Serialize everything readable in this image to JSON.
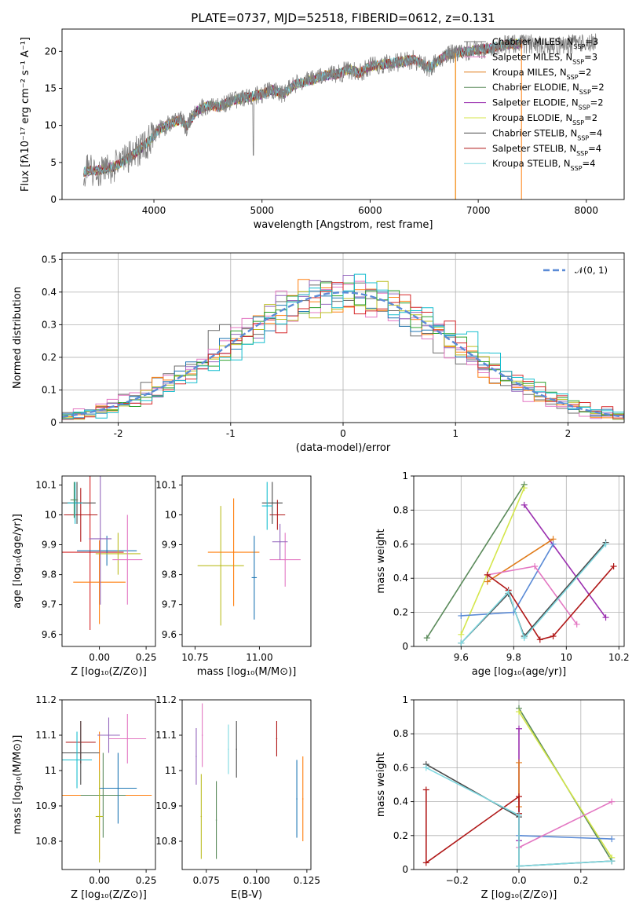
{
  "colors": [
    "#6c6c6c",
    "#e377c2",
    "#ff7f0e",
    "#1f77b4",
    "#9467bd",
    "#bcbd22",
    "#2ca02c",
    "#d62728",
    "#17becf"
  ],
  "models": [
    {
      "name": "Chabrier MILES",
      "nssp": "3",
      "color": "#7f7f7f"
    },
    {
      "name": "Salpeter MILES",
      "nssp": "3",
      "color": "#e377c2"
    },
    {
      "name": "Kroupa MILES",
      "nssp": "2",
      "color": "#e07b1a"
    },
    {
      "name": "Chabrier ELODIE",
      "nssp": "2",
      "color": "#5a8a5a"
    },
    {
      "name": "Salpeter ELODIE",
      "nssp": "2",
      "color": "#9b30b0"
    },
    {
      "name": "Kroupa ELODIE",
      "nssp": "2",
      "color": "#d4e64a"
    },
    {
      "name": "Chabrier STELIB",
      "nssp": "4",
      "color": "#4a4a4a"
    },
    {
      "name": "Salpeter STELIB",
      "nssp": "4",
      "color": "#b01818"
    },
    {
      "name": "Kroupa STELIB",
      "nssp": "4",
      "color": "#7fd8e0"
    }
  ],
  "chart_data": [
    {
      "id": "spectrum",
      "type": "line",
      "title": "PLATE=0737, MJD=52518, FIBERID=0612, z=0.131",
      "xlabel": "wavelength [Angstrom, rest frame]",
      "ylabel": "Flux [fλ10⁻¹⁷ erg cm⁻² s⁻¹ A⁻¹]",
      "xlim": [
        3150,
        8350
      ],
      "ylim": [
        0,
        23
      ],
      "xticks": [
        4000,
        5000,
        6000,
        7000,
        8000
      ],
      "yticks": [
        0,
        5,
        10,
        15,
        20
      ],
      "continuum": [
        [
          3350,
          3.8
        ],
        [
          3500,
          4.0
        ],
        [
          3650,
          4.5
        ],
        [
          3750,
          5.5
        ],
        [
          3850,
          6.5
        ],
        [
          3950,
          7.8
        ],
        [
          4050,
          9.5
        ],
        [
          4150,
          10.2
        ],
        [
          4250,
          10.8
        ],
        [
          4300,
          9.8
        ],
        [
          4400,
          12.0
        ],
        [
          4500,
          12.7
        ],
        [
          4600,
          12.5
        ],
        [
          4700,
          13.2
        ],
        [
          4800,
          13.6
        ],
        [
          4900,
          13.9
        ],
        [
          5000,
          14.2
        ],
        [
          5100,
          14.8
        ],
        [
          5200,
          14.2
        ],
        [
          5300,
          15.5
        ],
        [
          5400,
          15.9
        ],
        [
          5500,
          16.3
        ],
        [
          5600,
          16.8
        ],
        [
          5700,
          16.9
        ],
        [
          5800,
          17.6
        ],
        [
          5900,
          17.0
        ],
        [
          6000,
          18.0
        ],
        [
          6100,
          18.2
        ],
        [
          6200,
          18.4
        ],
        [
          6300,
          18.6
        ],
        [
          6400,
          18.9
        ],
        [
          6550,
          17.8
        ],
        [
          6700,
          19.5
        ],
        [
          6900,
          20.0
        ],
        [
          7100,
          20.4
        ],
        [
          7300,
          21.0
        ],
        [
          7500,
          21.0
        ],
        [
          7700,
          20.6
        ],
        [
          7900,
          21.0
        ],
        [
          8100,
          21.2
        ]
      ],
      "data_xmax": 8100,
      "model_xmax": 7410,
      "cutoffs": [
        {
          "x": 6790,
          "color": "#bcbd22"
        },
        {
          "x": 7400,
          "color": "#ff7f0e"
        },
        {
          "x": 6790,
          "color": "#ff7f0e"
        }
      ]
    },
    {
      "id": "residuals",
      "type": "histogram",
      "xlabel": "(data-model)/error",
      "ylabel": "Normed distribution",
      "xlim": [
        -2.5,
        2.5
      ],
      "ylim": [
        0,
        0.52
      ],
      "xticks": [
        -2,
        -1,
        0,
        1,
        2
      ],
      "yticks": [
        0,
        0.1,
        0.2,
        0.3,
        0.4,
        0.5
      ],
      "bin_width": 0.1,
      "legend": "𝒩(0, 1)",
      "gaussian": {
        "mu": 0,
        "sigma": 1,
        "color": "#5b8bd6"
      }
    },
    {
      "id": "age-vs-Z",
      "type": "errorbar",
      "xlabel": "Z [log₁₀(Z/Z⊙)]",
      "ylabel": "age  [log₁₀(age/yr)]",
      "xlim": [
        -0.2,
        0.3
      ],
      "ylim": [
        9.56,
        10.13
      ],
      "xticks": [
        0.0,
        0.25
      ],
      "xticklabels": [
        "0.00",
        "0.25"
      ],
      "yticks": [
        9.6,
        9.7,
        9.8,
        9.9,
        10.0,
        10.1
      ],
      "points": [
        {
          "x": -0.05,
          "y": 9.875,
          "xerr": 0.18,
          "yerr": 0.26,
          "color": "#d62728"
        },
        {
          "x": 0.0,
          "y": 9.775,
          "xerr": 0.14,
          "yerr": 0.14,
          "color": "#ff7f0e"
        },
        {
          "x": 0.04,
          "y": 9.88,
          "xerr": 0.16,
          "yerr": 0.05,
          "color": "#1f77b4"
        },
        {
          "x": 0.1,
          "y": 9.87,
          "xerr": 0.12,
          "yerr": 0.07,
          "color": "#bcbd22"
        },
        {
          "x": 0.15,
          "y": 9.85,
          "xerr": 0.08,
          "yerr": 0.15,
          "color": "#e377c2"
        },
        {
          "x": 0.005,
          "y": 9.92,
          "xerr": 0.06,
          "yerr": 0.22,
          "color": "#9467bd"
        },
        {
          "x": -0.12,
          "y": 10.04,
          "xerr": 0.1,
          "yerr": 0.07,
          "color": "#4a4a4a"
        },
        {
          "x": -0.1,
          "y": 10.0,
          "xerr": 0.09,
          "yerr": 0.09,
          "color": "#b01818"
        },
        {
          "x": -0.13,
          "y": 10.04,
          "xerr": 0.04,
          "yerr": 0.07,
          "color": "#17becf"
        },
        {
          "x": -0.135,
          "y": 10.05,
          "xerr": 0.02,
          "yerr": 0.06,
          "color": "#5a8a5a"
        }
      ]
    },
    {
      "id": "age-vs-mass",
      "type": "errorbar",
      "xlabel": "mass [log₁₀(M/M⊙)]",
      "ylabel": "",
      "xlim": [
        10.7,
        11.2
      ],
      "ylim": [
        9.56,
        10.13
      ],
      "xticks": [
        10.75,
        11.0
      ],
      "xticklabels": [
        "10.75",
        "11.00"
      ],
      "yticks": [
        9.6,
        9.7,
        9.8,
        9.9,
        10.0,
        10.1
      ],
      "points": [
        {
          "x": 10.85,
          "y": 9.83,
          "xerr": 0.09,
          "yerr": 0.2,
          "color": "#bcbd22"
        },
        {
          "x": 10.9,
          "y": 9.875,
          "xerr": 0.1,
          "yerr": 0.18,
          "color": "#ff7f0e"
        },
        {
          "x": 10.98,
          "y": 9.79,
          "xerr": 0.01,
          "yerr": 0.14,
          "color": "#1f77b4"
        },
        {
          "x": 11.1,
          "y": 9.85,
          "xerr": 0.06,
          "yerr": 0.09,
          "color": "#e377c2"
        },
        {
          "x": 11.08,
          "y": 9.91,
          "xerr": 0.03,
          "yerr": 0.06,
          "color": "#9467bd"
        },
        {
          "x": 11.07,
          "y": 10.0,
          "xerr": 0.03,
          "yerr": 0.05,
          "color": "#b01818"
        },
        {
          "x": 11.05,
          "y": 10.04,
          "xerr": 0.04,
          "yerr": 0.07,
          "color": "#4a4a4a"
        },
        {
          "x": 11.03,
          "y": 10.03,
          "xerr": 0.02,
          "yerr": 0.08,
          "color": "#17becf"
        }
      ]
    },
    {
      "id": "weight-vs-age",
      "type": "line",
      "xlabel": "age  [log₁₀(age/yr)]",
      "ylabel": "mass weight",
      "xlim": [
        9.42,
        10.22
      ],
      "ylim": [
        0,
        1.0
      ],
      "xticks": [
        9.6,
        9.8,
        10.0,
        10.2
      ],
      "yticks": [
        0,
        0.2,
        0.4,
        0.6,
        0.8,
        1.0
      ],
      "series": [
        {
          "color": "#5a8a5a",
          "x": [
            9.47,
            9.84
          ],
          "y": [
            0.05,
            0.95
          ]
        },
        {
          "color": "#d4e64a",
          "x": [
            9.6,
            9.84
          ],
          "y": [
            0.07,
            0.93
          ]
        },
        {
          "color": "#9b30b0",
          "x": [
            9.84,
            10.15
          ],
          "y": [
            0.83,
            0.17
          ]
        },
        {
          "color": "#e07b1a",
          "x": [
            9.7,
            9.95
          ],
          "y": [
            0.38,
            0.63
          ]
        },
        {
          "color": "#5b8bd6",
          "x": [
            9.6,
            9.8,
            9.95
          ],
          "y": [
            0.18,
            0.2,
            0.6
          ]
        },
        {
          "color": "#e377c2",
          "x": [
            9.7,
            9.88,
            10.04
          ],
          "y": [
            0.42,
            0.47,
            0.13
          ]
        },
        {
          "color": "#b01818",
          "x": [
            9.7,
            9.78,
            9.9,
            9.95,
            10.18
          ],
          "y": [
            0.42,
            0.33,
            0.04,
            0.06,
            0.47
          ]
        },
        {
          "color": "#4a4a4a",
          "x": [
            9.6,
            9.78,
            9.84,
            10.15
          ],
          "y": [
            0.02,
            0.31,
            0.06,
            0.61
          ]
        },
        {
          "color": "#7fd8e0",
          "x": [
            9.6,
            9.78,
            9.84,
            10.15
          ],
          "y": [
            0.02,
            0.32,
            0.05,
            0.6
          ]
        }
      ]
    },
    {
      "id": "mass-vs-Z",
      "type": "errorbar",
      "xlabel": "Z [log₁₀(Z/Z⊙)]",
      "ylabel": "mass [log₁₀(M/M⊙)]",
      "xlim": [
        -0.2,
        0.3
      ],
      "ylim": [
        10.72,
        11.2
      ],
      "xticks": [
        0.0,
        0.25
      ],
      "xticklabels": [
        "0.00",
        "0.25"
      ],
      "yticks": [
        10.8,
        10.9,
        11.0,
        11.1,
        11.2
      ],
      "points": [
        {
          "x": 0.0,
          "y": 10.93,
          "xerr": 0.28,
          "yerr": 0.18,
          "color": "#ff7f0e"
        },
        {
          "x": 0.02,
          "y": 10.93,
          "xerr": 0.12,
          "yerr": 0.12,
          "color": "#5a8a5a"
        },
        {
          "x": 0.1,
          "y": 10.95,
          "xerr": 0.1,
          "yerr": 0.1,
          "color": "#1f77b4"
        },
        {
          "x": 0.0,
          "y": 10.87,
          "xerr": 0.02,
          "yerr": 0.13,
          "color": "#bcbd22"
        },
        {
          "x": 0.15,
          "y": 11.09,
          "xerr": 0.1,
          "yerr": 0.07,
          "color": "#e377c2"
        },
        {
          "x": 0.05,
          "y": 11.1,
          "xerr": 0.06,
          "yerr": 0.05,
          "color": "#9467bd"
        },
        {
          "x": -0.1,
          "y": 11.08,
          "xerr": 0.08,
          "yerr": 0.06,
          "color": "#b01818"
        },
        {
          "x": -0.1,
          "y": 11.05,
          "xerr": 0.1,
          "yerr": 0.09,
          "color": "#4a4a4a"
        },
        {
          "x": -0.12,
          "y": 11.03,
          "xerr": 0.08,
          "yerr": 0.08,
          "color": "#17becf"
        }
      ]
    },
    {
      "id": "mass-vs-ebv",
      "type": "errorbar",
      "xlabel": "E(B-V)",
      "ylabel": "",
      "xlim": [
        0.063,
        0.127
      ],
      "ylim": [
        10.72,
        11.2
      ],
      "xticks": [
        0.075,
        0.1,
        0.125
      ],
      "xticklabels": [
        "0.075",
        "0.100",
        "0.125"
      ],
      "yticks": [
        10.8,
        10.9,
        11.0,
        11.1,
        11.2
      ],
      "points": [
        {
          "x": 0.07,
          "y": 11.04,
          "yerr": 0.08,
          "color": "#9467bd"
        },
        {
          "x": 0.073,
          "y": 11.1,
          "yerr": 0.09,
          "color": "#e377c2"
        },
        {
          "x": 0.0725,
          "y": 10.87,
          "yerr": 0.12,
          "color": "#bcbd22"
        },
        {
          "x": 0.08,
          "y": 10.86,
          "yerr": 0.11,
          "color": "#5a8a5a"
        },
        {
          "x": 0.086,
          "y": 11.06,
          "yerr": 0.07,
          "color": "#7fd8e0"
        },
        {
          "x": 0.09,
          "y": 11.06,
          "yerr": 0.08,
          "color": "#4a4a4a"
        },
        {
          "x": 0.11,
          "y": 11.09,
          "yerr": 0.05,
          "color": "#b01818"
        },
        {
          "x": 0.12,
          "y": 10.92,
          "yerr": 0.11,
          "color": "#1f77b4"
        },
        {
          "x": 0.123,
          "y": 10.92,
          "yerr": 0.12,
          "color": "#ff7f0e"
        }
      ]
    },
    {
      "id": "weight-vs-Z",
      "type": "line",
      "xlabel": "Z [log₁₀(Z/Z⊙)]",
      "ylabel": "mass weight",
      "xlim": [
        -0.34,
        0.34
      ],
      "ylim": [
        0,
        1.0
      ],
      "xticks": [
        -0.2,
        0.0,
        0.2
      ],
      "xticklabels": [
        "−0.2",
        "0.0",
        "0.2"
      ],
      "yticks": [
        0,
        0.2,
        0.4,
        0.6,
        0.8,
        1.0
      ],
      "series": [
        {
          "color": "#5a8a5a",
          "x": [
            0.0,
            0.3
          ],
          "y": [
            0.95,
            0.05
          ]
        },
        {
          "color": "#d4e64a",
          "x": [
            0.0,
            0.3
          ],
          "y": [
            0.93,
            0.07
          ]
        },
        {
          "color": "#9b30b0",
          "x": [
            0.0,
            0.0
          ],
          "y": [
            0.83,
            0.17
          ]
        },
        {
          "color": "#e07b1a",
          "x": [
            0.0,
            0.0
          ],
          "y": [
            0.63,
            0.37
          ]
        },
        {
          "color": "#5b8bd6",
          "x": [
            0.0,
            0.3
          ],
          "y": [
            0.2,
            0.18
          ]
        },
        {
          "color": "#e377c2",
          "x": [
            0.0,
            0.3
          ],
          "y": [
            0.13,
            0.4
          ]
        },
        {
          "color": "#b01818",
          "x": [
            -0.3,
            -0.3,
            0.0,
            0.0
          ],
          "y": [
            0.47,
            0.04,
            0.43,
            0.33
          ]
        },
        {
          "color": "#4a4a4a",
          "x": [
            -0.3,
            0.0,
            0.0,
            0.3
          ],
          "y": [
            0.62,
            0.31,
            0.02,
            0.05
          ]
        },
        {
          "color": "#7fd8e0",
          "x": [
            -0.3,
            0.0,
            0.0,
            0.3
          ],
          "y": [
            0.6,
            0.32,
            0.02,
            0.05
          ]
        }
      ]
    }
  ]
}
